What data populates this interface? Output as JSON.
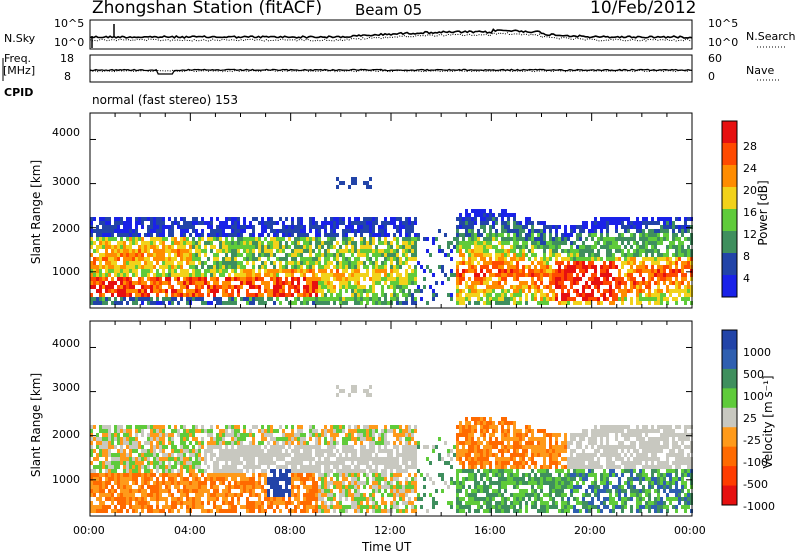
{
  "header": {
    "station": "Zhongshan Station (fitACF)",
    "beam": "Beam 05",
    "date": "10/Feb/2012"
  },
  "panel_labels": {
    "nsky": "N.Sky",
    "freq": "Freq.",
    "mhz": "[MHz]",
    "cpid": "CPID",
    "nsearch": "N.Search",
    "nave": "Nave",
    "cpid_value": "normal (fast stereo) 153"
  },
  "chart_data": [
    {
      "type": "line",
      "name": "noise",
      "ylim_labels": [
        "10^0",
        "10^5"
      ],
      "series": [
        {
          "name": "N.Sky",
          "style": "solid"
        },
        {
          "name": "N.Search",
          "style": "dotted"
        }
      ]
    },
    {
      "type": "line",
      "name": "frequency",
      "left_ticks": [
        "8",
        "18"
      ],
      "right_ticks": [
        "0",
        "60"
      ],
      "series": [
        {
          "name": "Freq.",
          "style": "solid"
        },
        {
          "name": "Nave",
          "style": "dotted"
        }
      ]
    },
    {
      "type": "heatmap",
      "name": "power",
      "x_ticks": [
        "00:00",
        "04:00",
        "08:00",
        "12:00",
        "16:00",
        "20:00",
        "00:00"
      ],
      "xlabel": "Time UT",
      "ylabel": "Slant Range [km]",
      "y_ticks": [
        "1000",
        "2000",
        "3000",
        "4000"
      ],
      "ylim": [
        180,
        4600
      ],
      "colorbar_label": "Power [dB]",
      "colorbar_ticks": [
        "4",
        "8",
        "12",
        "16",
        "20",
        "24",
        "28"
      ],
      "colorbar_colors": [
        "#1a22e8",
        "#2244a8",
        "#3f8f5e",
        "#5fcb3a",
        "#f2d21a",
        "#ff8c00",
        "#ff4a00",
        "#e61010"
      ]
    },
    {
      "type": "heatmap",
      "name": "velocity",
      "ylabel": "Slant Range [km]",
      "y_ticks": [
        "1000",
        "2000",
        "3000",
        "4000"
      ],
      "ylim": [
        180,
        4600
      ],
      "colorbar_label": "Velocity [m s⁻¹]",
      "colorbar_ticks": [
        "1000",
        "500",
        "100",
        "25",
        "-25",
        "-100",
        "-500",
        "-1000"
      ],
      "colorbar_colors": [
        "#2244a8",
        "#2f5fb0",
        "#3f8f5e",
        "#5fcb3a",
        "#c8c8c0",
        "#ff9a1a",
        "#ff6a00",
        "#ff3c00",
        "#e61010"
      ]
    }
  ]
}
